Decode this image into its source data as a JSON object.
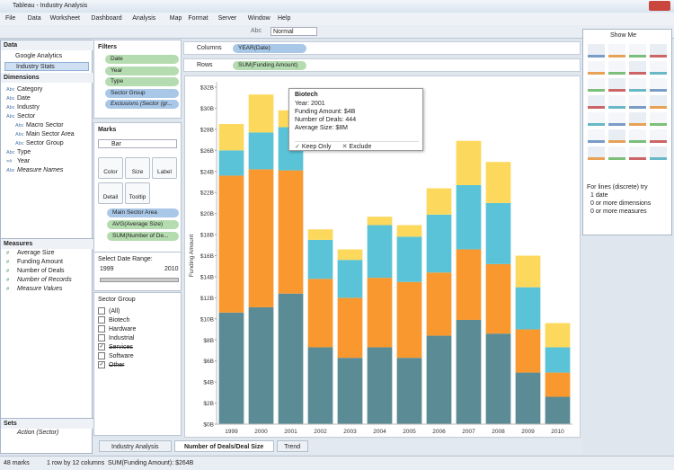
{
  "window": {
    "title": "Tableau - Industry Analysis"
  },
  "menu": [
    "File",
    "Data",
    "Worksheet",
    "Dashboard",
    "Analysis",
    "Map",
    "Format",
    "Server",
    "Window",
    "Help"
  ],
  "toolbar": {
    "label_button": "Abc",
    "fit": "Normal"
  },
  "data_pane": {
    "title": "Data",
    "sources": [
      "Google Analytics",
      "Industry Stats"
    ],
    "dimensions_title": "Dimensions",
    "dimensions": [
      {
        "icon": "Abc",
        "label": "Category",
        "level": 0
      },
      {
        "icon": "Abc",
        "label": "Date",
        "level": 0
      },
      {
        "icon": "Abc",
        "label": "Industry",
        "level": 0
      },
      {
        "icon": "Abc",
        "label": "Sector",
        "level": 0
      },
      {
        "icon": "Abc",
        "label": "Macro Sector",
        "level": 1
      },
      {
        "icon": "Abc",
        "label": "Main Sector Area",
        "level": 1
      },
      {
        "icon": "Abc",
        "label": "Sector Group",
        "level": 1
      },
      {
        "icon": "Abc",
        "label": "Type",
        "level": 0
      },
      {
        "icon": "=#",
        "label": "Year",
        "level": 0
      },
      {
        "icon": "Abc",
        "label": "Measure Names",
        "level": 0
      }
    ],
    "measures_title": "Measures",
    "measures": [
      {
        "icon": "#",
        "label": "Average Size"
      },
      {
        "icon": "#",
        "label": "Funding Amount"
      },
      {
        "icon": "#",
        "label": "Number of Deals"
      },
      {
        "icon": "#",
        "label": "Number of Records"
      },
      {
        "icon": "#",
        "label": "Measure Values"
      }
    ],
    "sets_title": "Sets",
    "sets": [
      "Action (Sector)"
    ]
  },
  "filters": {
    "title": "Filters",
    "items": [
      {
        "label": "Date",
        "color": "#b5dcb0"
      },
      {
        "label": "Year",
        "color": "#b5dcb0"
      },
      {
        "label": "Type",
        "color": "#b5dcb0"
      },
      {
        "label": "Sector Group",
        "color": "#a9c8e8"
      },
      {
        "label": "Exclusions (Sector (gr...",
        "color": "#a9c8e8"
      }
    ]
  },
  "marks": {
    "title": "Marks",
    "type": "Bar",
    "buttons": [
      "Color",
      "Size",
      "Label",
      "Detail",
      "Tooltip"
    ],
    "fields": [
      {
        "label": "Main Sector Area",
        "color": "#a9c8e8"
      },
      {
        "label": "AVG(Average Size)",
        "color": "#b5dcb0"
      },
      {
        "label": "SUM(Number of De...",
        "color": "#b5dcb0"
      }
    ]
  },
  "date_range": {
    "title": "Select Date Range:",
    "min": 1999,
    "max": 2010
  },
  "sector_group": {
    "title": "Sector Group",
    "items": [
      {
        "label": "(All)",
        "checked": false
      },
      {
        "label": "Biotech",
        "checked": false
      },
      {
        "label": "Hardware",
        "checked": false
      },
      {
        "label": "Industrial",
        "checked": false
      },
      {
        "label": "Services",
        "checked": true
      },
      {
        "label": "Software",
        "checked": false
      },
      {
        "label": "Other",
        "checked": true
      }
    ]
  },
  "shelves": {
    "columns_label": "Columns",
    "columns": "YEAR(Date)",
    "rows_label": "Rows",
    "rows": "SUM(Funding Amount)"
  },
  "show_me": {
    "title": "Show Me",
    "hint": [
      "For lines (discrete) try",
      "1 date",
      "0 or more dimensions",
      "0 or more measures"
    ]
  },
  "tooltip": {
    "title": "Biotech",
    "lines": [
      "Year: 2001",
      "Funding Amount: $4B",
      "Number of Deals: 444",
      "Average Size: $8M"
    ],
    "actions": [
      "Keep Only",
      "Exclude"
    ]
  },
  "tabs": {
    "items": [
      "Industry Analysis",
      "Number of Deals/Deal Size",
      "Trend"
    ],
    "active": 1
  },
  "status": [
    "48 marks",
    "1 row by 12 columns",
    "SUM(Funding Amount): $264B"
  ],
  "chart_data": {
    "type": "bar",
    "stacked": true,
    "y_label": "Funding Amount",
    "categories": [
      "1999",
      "2000",
      "2001",
      "2002",
      "2003",
      "2004",
      "2005",
      "2006",
      "2007",
      "2008",
      "2009",
      "2010"
    ],
    "series": [
      {
        "color": "#5b8b95",
        "values": [
          10.6,
          11.1,
          12.4,
          7.3,
          6.3,
          7.3,
          6.3,
          8.4,
          9.9,
          8.6,
          4.9,
          2.6
        ]
      },
      {
        "color": "#f8982f",
        "values": [
          13.0,
          13.1,
          11.7,
          6.5,
          5.7,
          6.6,
          7.2,
          6.0,
          6.7,
          6.6,
          4.1,
          2.3
        ]
      },
      {
        "color": "#5bc3d7",
        "values": [
          2.4,
          3.5,
          4.1,
          3.7,
          3.6,
          5.0,
          4.3,
          5.5,
          6.1,
          5.8,
          4.0,
          2.4
        ]
      },
      {
        "color": "#fcd95c",
        "values": [
          2.5,
          3.6,
          1.6,
          1.0,
          1.0,
          0.8,
          1.1,
          2.5,
          4.2,
          3.9,
          3.0,
          2.3
        ]
      }
    ],
    "ylim": [
      0,
      32
    ],
    "yticks": [
      {
        "value": 0,
        "label": "$0B"
      },
      {
        "value": 2,
        "label": "$2B"
      },
      {
        "value": 4,
        "label": "$4B"
      },
      {
        "value": 6,
        "label": "$6B"
      },
      {
        "value": 8,
        "label": "$8B"
      },
      {
        "value": 10,
        "label": "$10B"
      },
      {
        "value": 12,
        "label": "$12B"
      },
      {
        "value": 14,
        "label": "$14B"
      },
      {
        "value": 16,
        "label": "$16B"
      },
      {
        "value": 18,
        "label": "$18B"
      },
      {
        "value": 20,
        "label": "$20B"
      },
      {
        "value": 22,
        "label": "$22B"
      },
      {
        "value": 24,
        "label": "$24B"
      },
      {
        "value": 26,
        "label": "$26B"
      },
      {
        "value": 28,
        "label": "$28B"
      },
      {
        "value": 30,
        "label": "$30B"
      },
      {
        "value": 32,
        "label": "$32B"
      }
    ]
  }
}
